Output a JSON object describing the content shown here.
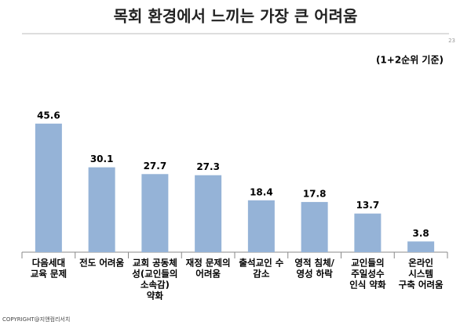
{
  "chart_data": {
    "type": "bar",
    "title": "목회 환경에서 느끼는 가장 큰 어려움",
    "page_number": "23",
    "subtitle": "(1+2순위 기준)",
    "footer": "COPYRIGHT@지앤컴리서치",
    "categories": [
      [
        "다음세대",
        "교육 문제"
      ],
      [
        "전도 어려움"
      ],
      [
        "교회 공동체",
        "성(교인들의",
        "소속감)",
        "약화"
      ],
      [
        "재정 문제의",
        "어려움"
      ],
      [
        "출석교인 수",
        "감소"
      ],
      [
        "영적 침체/",
        "영성 하락"
      ],
      [
        "교인들의",
        "주일성수",
        "인식 약화"
      ],
      [
        "온라인",
        "시스템",
        "구축 어려움"
      ]
    ],
    "values": [
      45.6,
      30.1,
      27.7,
      27.3,
      18.4,
      17.8,
      13.7,
      3.8
    ],
    "color": "#95b3d7",
    "ylim": [
      0,
      50
    ]
  }
}
